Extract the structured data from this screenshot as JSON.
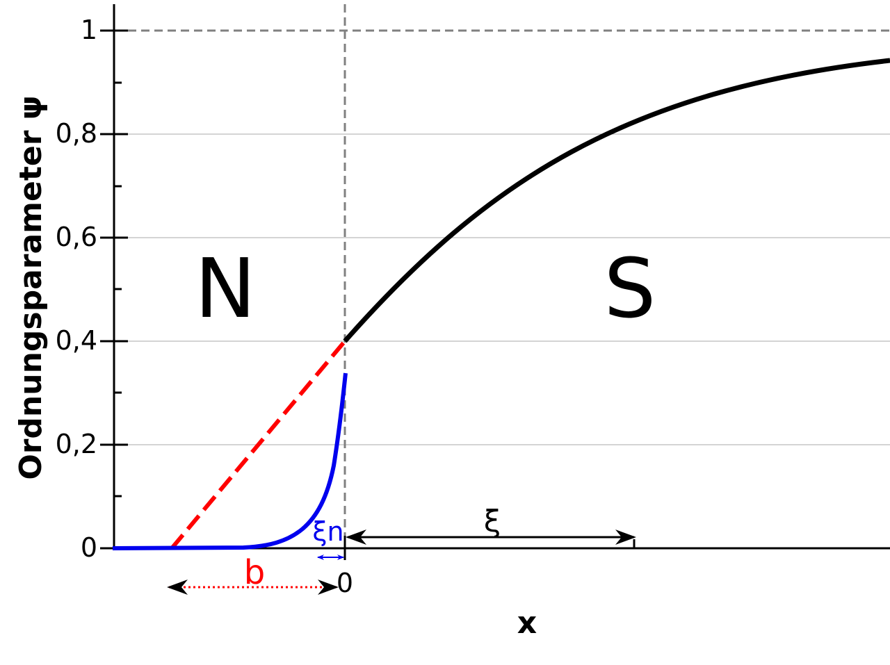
{
  "diagram": {
    "y_axis": {
      "label": "Ordnungsparameter ψ",
      "ticks": [
        "0",
        "0,2",
        "0,4",
        "0,6",
        "0,8",
        "1"
      ],
      "range": [
        0,
        1
      ]
    },
    "x_axis": {
      "label": "x",
      "tick": "0"
    },
    "regions": {
      "normal": "N",
      "superconductor": "S"
    },
    "annotations": {
      "xi": "ξ",
      "xi_n": "ξn",
      "b": "b"
    },
    "colors": {
      "superconductor_curve": "#000000",
      "normal_curve": "#0000ee",
      "extrapolation": "#ff0000",
      "reference_lines": "#808080",
      "grid": "#aaaaaa"
    },
    "values": {
      "psi_at_interface": 0.4,
      "psi_normal_side_max": 0.34
    }
  }
}
